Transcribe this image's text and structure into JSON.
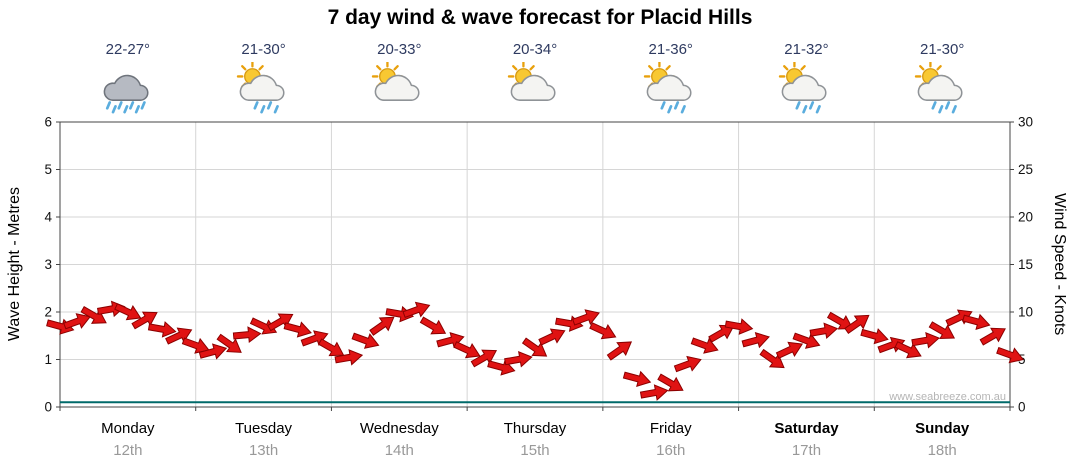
{
  "title": "7 day wind & wave forecast for Placid Hills",
  "watermark": "www.seabreeze.com.au",
  "colors": {
    "wind_arrow_fill": "#e01313",
    "wind_arrow_stroke": "#8c0000",
    "wave_line": "#006a6a",
    "temp_text": "#2e3a60",
    "date_text": "#999999",
    "grid_line": "#d6d6d6",
    "axis_line": "#444444",
    "tick_text": "#111111"
  },
  "days": [
    {
      "name": "Monday",
      "date": "12th",
      "temp": "22-27°",
      "icon": "rain-cloud",
      "bold": false
    },
    {
      "name": "Tuesday",
      "date": "13th",
      "temp": "21-30°",
      "icon": "sun-cloud-rain",
      "bold": false
    },
    {
      "name": "Wednesday",
      "date": "14th",
      "temp": "20-33°",
      "icon": "sun-cloud",
      "bold": false
    },
    {
      "name": "Thursday",
      "date": "15th",
      "temp": "20-34°",
      "icon": "sun-cloud",
      "bold": false
    },
    {
      "name": "Friday",
      "date": "16th",
      "temp": "21-36°",
      "icon": "sun-cloud-rain",
      "bold": false
    },
    {
      "name": "Saturday",
      "date": "17th",
      "temp": "21-32°",
      "icon": "sun-cloud-rain",
      "bold": true
    },
    {
      "name": "Sunday",
      "date": "18th",
      "temp": "21-30°",
      "icon": "sun-cloud-rain",
      "bold": true
    }
  ],
  "chart_data": {
    "type": "line",
    "title": "7 day wind & wave forecast for Placid Hills",
    "left_axis": {
      "label": "Wave Height - Metres",
      "range": [
        0,
        6
      ],
      "ticks": [
        0,
        1,
        2,
        3,
        4,
        5,
        6
      ]
    },
    "right_axis": {
      "label": "Wind Speed - Knots",
      "range": [
        0,
        30
      ],
      "ticks": [
        0,
        5,
        10,
        15,
        20,
        25,
        30
      ]
    },
    "x_axis": {
      "unit": "days",
      "range": [
        0,
        7
      ],
      "categories": [
        "Monday 12th",
        "Tuesday 13th",
        "Wednesday 14th",
        "Thursday 15th",
        "Friday 16th",
        "Saturday 17th",
        "Sunday 18th"
      ]
    },
    "series": [
      {
        "name": "Wind Speed",
        "axis": "right",
        "unit": "knots",
        "style": "wind-arrows",
        "x_days": [
          0,
          0.125,
          0.25,
          0.375,
          0.5,
          0.625,
          0.75,
          0.875,
          1,
          1.125,
          1.25,
          1.375,
          1.5,
          1.625,
          1.75,
          1.875,
          2,
          2.125,
          2.25,
          2.375,
          2.5,
          2.625,
          2.75,
          2.875,
          3,
          3.125,
          3.25,
          3.375,
          3.5,
          3.625,
          3.75,
          3.875,
          4,
          4.125,
          4.25,
          4.375,
          4.5,
          4.625,
          4.75,
          4.875,
          5,
          5.125,
          5.25,
          5.375,
          5.5,
          5.625,
          5.75,
          5.875,
          6,
          6.125,
          6.25,
          6.375,
          6.5,
          6.625,
          6.75,
          6.875,
          7
        ],
        "values": [
          8.5,
          9.0,
          9.6,
          10.3,
          10.0,
          9.2,
          8.2,
          7.5,
          6.5,
          5.8,
          6.6,
          7.6,
          8.5,
          9.0,
          8.2,
          7.2,
          6.2,
          5.2,
          7.0,
          8.6,
          9.8,
          10.2,
          8.5,
          7.0,
          6.0,
          5.2,
          4.2,
          5.0,
          6.2,
          7.4,
          8.8,
          9.4,
          8.0,
          6.0,
          3.0,
          1.5,
          2.5,
          4.5,
          6.5,
          7.8,
          8.5,
          7.0,
          5.0,
          6.0,
          7.0,
          8.0,
          9.0,
          8.8,
          7.5,
          6.5,
          6.0,
          7.0,
          8.0,
          9.4,
          9.0,
          7.5,
          5.5
        ],
        "directions_deg": [
          15,
          -20,
          30,
          -10,
          25,
          -30,
          10,
          -25,
          20,
          -15,
          35,
          -5,
          25,
          -30,
          15,
          -20,
          30,
          -10,
          20,
          -35,
          10,
          -20,
          30,
          -15,
          25,
          -30,
          15,
          -10,
          35,
          -25,
          10,
          -20,
          25,
          -35,
          15,
          -10,
          30,
          -20,
          20,
          -30,
          10,
          -15,
          35,
          -25,
          20,
          -10,
          30,
          -35,
          15,
          -20,
          25,
          -10,
          30,
          -25,
          15,
          -30,
          20
        ]
      },
      {
        "name": "Wave Height",
        "axis": "left",
        "unit": "metres",
        "style": "line",
        "x_days": [
          0,
          7
        ],
        "values": [
          0.1,
          0.1
        ]
      }
    ]
  }
}
